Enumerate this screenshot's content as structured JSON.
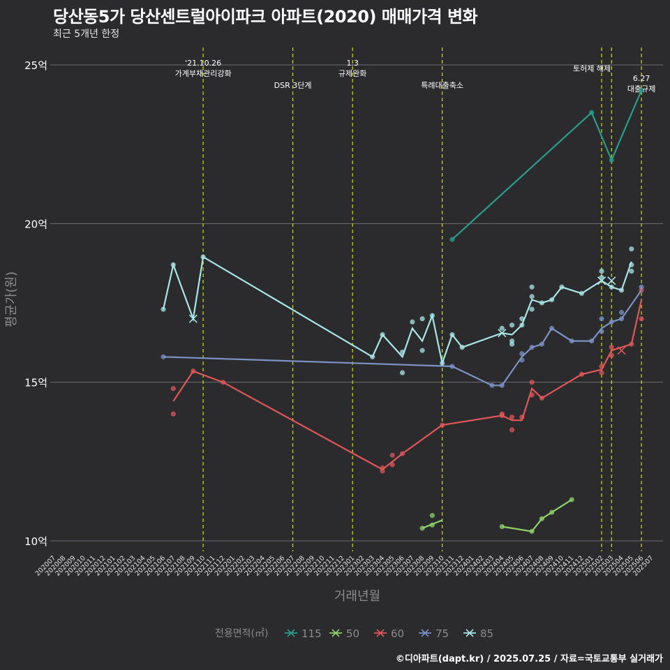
{
  "title": "당산동5가 당산센트럴아이파크 아파트(2020) 매매가격 변화",
  "subtitle": "최근 5개년 한정",
  "caption": "©디아파트(dapt.kr) / 2025.07.25 / 자료=국토교통부 실거래가",
  "chart_data": {
    "type": "line",
    "xlabel": "거래년월",
    "ylabel": "평균가(원)",
    "ylim": [
      9.8,
      25.6
    ],
    "yticks": [
      {
        "value": 10,
        "label": "10억"
      },
      {
        "value": 15,
        "label": "15억"
      },
      {
        "value": 20,
        "label": "20억"
      },
      {
        "value": 25,
        "label": "25억"
      }
    ],
    "x_categories": [
      "202007",
      "202008",
      "202009",
      "202010",
      "202011",
      "202012",
      "202101",
      "202102",
      "202103",
      "202104",
      "202105",
      "202106",
      "202107",
      "202108",
      "202109",
      "202110",
      "202111",
      "202112",
      "202201",
      "202202",
      "202203",
      "202204",
      "202205",
      "202206",
      "202207",
      "202208",
      "202209",
      "202210",
      "202211",
      "202212",
      "202301",
      "202302",
      "202303",
      "202304",
      "202305",
      "202306",
      "202307",
      "202308",
      "202309",
      "202310",
      "202311",
      "202312",
      "202401",
      "202402",
      "202403",
      "202404",
      "202405",
      "202406",
      "202407",
      "202408",
      "202409",
      "202410",
      "202411",
      "202412",
      "202501",
      "202502",
      "202503",
      "202504",
      "202505",
      "202506",
      "202507"
    ],
    "grid": true,
    "legend": {
      "title": "전용면적(㎡)",
      "position": "bottom",
      "items": [
        {
          "label": "115",
          "color": "#2a9d8f"
        },
        {
          "label": "50",
          "color": "#8fd26a"
        },
        {
          "label": "60",
          "color": "#e15759"
        },
        {
          "label": "75",
          "color": "#7b93c6"
        },
        {
          "label": "85",
          "color": "#a8e6e8"
        }
      ]
    },
    "events": [
      {
        "x": "202110",
        "label": "'21.10.26\n가계부채관리강화"
      },
      {
        "x": "202207",
        "label": "DSR 3단계"
      },
      {
        "x": "202301",
        "label": "1.3\n규제완화"
      },
      {
        "x": "202310",
        "label": "특례대출축소"
      },
      {
        "x": "202502",
        "label": "토허제 해제"
      },
      {
        "x": "202503",
        "label": ""
      },
      {
        "x": "202506",
        "label": "6.27\n대출규제"
      }
    ],
    "series": [
      {
        "name": "115",
        "color": "#2a9d8f",
        "line": [
          [
            "202311",
            19.5
          ],
          [
            "202501",
            23.5
          ],
          [
            "202503",
            22.0
          ],
          [
            "202506",
            24.2
          ]
        ],
        "points": [
          [
            "202311",
            19.5
          ],
          [
            "202501",
            23.5
          ],
          [
            "202503",
            22.0
          ],
          [
            "202506",
            24.2
          ]
        ],
        "crosses": []
      },
      {
        "name": "50",
        "color": "#8fd26a",
        "line": [
          [
            "202308",
            10.4
          ],
          [
            "202310",
            10.65
          ]
        ],
        "line2": [
          [
            "202404",
            10.45
          ],
          [
            "202407",
            10.3
          ],
          [
            "202408",
            10.7
          ],
          [
            "202409",
            10.9
          ],
          [
            "202411",
            11.3
          ]
        ],
        "points": [
          [
            "202308",
            10.4
          ],
          [
            "202309",
            10.5
          ],
          [
            "202309",
            10.8
          ],
          [
            "202404",
            10.45
          ],
          [
            "202407",
            10.3
          ],
          [
            "202408",
            10.7
          ],
          [
            "202409",
            10.9
          ],
          [
            "202411",
            11.3
          ]
        ],
        "crosses": []
      },
      {
        "name": "60",
        "color": "#e15759",
        "line": [
          [
            "202107",
            14.4
          ],
          [
            "202109",
            15.35
          ],
          [
            "202112",
            15.0
          ],
          [
            "202304",
            12.25
          ],
          [
            "202306",
            12.75
          ],
          [
            "202310",
            13.65
          ],
          [
            "202404",
            13.95
          ],
          [
            "202405",
            13.8
          ],
          [
            "202406",
            13.8
          ],
          [
            "202407",
            14.8
          ],
          [
            "202408",
            14.5
          ],
          [
            "202412",
            15.25
          ],
          [
            "202502",
            15.4
          ],
          [
            "202503",
            16.0
          ],
          [
            "202505",
            16.2
          ],
          [
            "202506",
            17.6
          ]
        ],
        "points": [
          [
            "202107",
            14.8
          ],
          [
            "202107",
            14.0
          ],
          [
            "202109",
            15.35
          ],
          [
            "202112",
            15.0
          ],
          [
            "202304",
            12.3
          ],
          [
            "202304",
            12.2
          ],
          [
            "202305",
            12.7
          ],
          [
            "202305",
            12.4
          ],
          [
            "202306",
            12.75
          ],
          [
            "202310",
            13.65
          ],
          [
            "202404",
            13.95
          ],
          [
            "202404",
            14.0
          ],
          [
            "202405",
            13.5
          ],
          [
            "202405",
            13.9
          ],
          [
            "202406",
            13.9
          ],
          [
            "202407",
            15.0
          ],
          [
            "202407",
            14.6
          ],
          [
            "202408",
            14.5
          ],
          [
            "202412",
            15.25
          ],
          [
            "202502",
            15.3
          ],
          [
            "202502",
            15.5
          ],
          [
            "202503",
            16.1
          ],
          [
            "202503",
            15.85
          ],
          [
            "202505",
            16.2
          ],
          [
            "202506",
            17.9
          ],
          [
            "202506",
            17.0
          ]
        ],
        "crosses": [
          [
            "202504",
            16.0
          ]
        ]
      },
      {
        "name": "75",
        "color": "#7b93c6",
        "line": [
          [
            "202106",
            15.8
          ],
          [
            "202311",
            15.5
          ],
          [
            "202403",
            14.9
          ],
          [
            "202404",
            14.9
          ],
          [
            "202406",
            15.8
          ],
          [
            "202407",
            16.1
          ],
          [
            "202408",
            16.2
          ],
          [
            "202409",
            16.7
          ],
          [
            "202411",
            16.3
          ],
          [
            "202501",
            16.3
          ],
          [
            "202502",
            16.7
          ],
          [
            "202503",
            16.9
          ],
          [
            "202504",
            17.0
          ],
          [
            "202506",
            17.9
          ]
        ],
        "points": [
          [
            "202106",
            15.8
          ],
          [
            "202311",
            15.5
          ],
          [
            "202403",
            14.9
          ],
          [
            "202404",
            14.9
          ],
          [
            "202406",
            15.9
          ],
          [
            "202406",
            15.7
          ],
          [
            "202407",
            16.1
          ],
          [
            "202408",
            16.2
          ],
          [
            "202409",
            16.7
          ],
          [
            "202411",
            16.3
          ],
          [
            "202501",
            16.3
          ],
          [
            "202502",
            16.6
          ],
          [
            "202502",
            17.0
          ],
          [
            "202503",
            16.9
          ],
          [
            "202504",
            17.0
          ],
          [
            "202504",
            17.2
          ],
          [
            "202506",
            18.0
          ]
        ],
        "crosses": []
      },
      {
        "name": "85",
        "color": "#a8e6e8",
        "line": [
          [
            "202106",
            17.3
          ],
          [
            "202107",
            18.7
          ],
          [
            "202109",
            17.0
          ],
          [
            "202110",
            18.95
          ],
          [
            "202303",
            15.8
          ],
          [
            "202304",
            16.5
          ],
          [
            "202306",
            15.8
          ],
          [
            "202307",
            16.7
          ],
          [
            "202308",
            16.3
          ],
          [
            "202309",
            17.1
          ],
          [
            "202310",
            15.6
          ],
          [
            "202311",
            16.5
          ],
          [
            "202312",
            16.1
          ],
          [
            "202404",
            16.55
          ],
          [
            "202405",
            16.5
          ],
          [
            "202406",
            16.8
          ],
          [
            "202407",
            17.6
          ],
          [
            "202408",
            17.5
          ],
          [
            "202409",
            17.6
          ],
          [
            "202410",
            18.0
          ],
          [
            "202412",
            17.8
          ],
          [
            "202502",
            18.2
          ],
          [
            "202503",
            18.0
          ],
          [
            "202504",
            17.9
          ],
          [
            "202505",
            18.8
          ]
        ],
        "points": [
          [
            "202106",
            17.3
          ],
          [
            "202107",
            18.7
          ],
          [
            "202110",
            18.95
          ],
          [
            "202303",
            15.8
          ],
          [
            "202304",
            16.5
          ],
          [
            "202306",
            15.95
          ],
          [
            "202306",
            15.3
          ],
          [
            "202307",
            16.9
          ],
          [
            "202308",
            17.0
          ],
          [
            "202308",
            16.0
          ],
          [
            "202309",
            17.1
          ],
          [
            "202310",
            15.6
          ],
          [
            "202311",
            16.5
          ],
          [
            "202312",
            16.1
          ],
          [
            "202404",
            16.7
          ],
          [
            "202405",
            16.8
          ],
          [
            "202405",
            16.3
          ],
          [
            "202405",
            16.2
          ],
          [
            "202406",
            17.0
          ],
          [
            "202406",
            16.8
          ],
          [
            "202407",
            18.0
          ],
          [
            "202407",
            17.7
          ],
          [
            "202407",
            17.3
          ],
          [
            "202408",
            17.5
          ],
          [
            "202409",
            17.6
          ],
          [
            "202410",
            18.0
          ],
          [
            "202412",
            17.8
          ],
          [
            "202502",
            18.5
          ],
          [
            "202502",
            18.3
          ],
          [
            "202503",
            18.0
          ],
          [
            "202504",
            17.9
          ],
          [
            "202505",
            19.2
          ],
          [
            "202505",
            18.7
          ],
          [
            "202505",
            18.5
          ]
        ],
        "crosses": [
          [
            "202109",
            17.0
          ],
          [
            "202404",
            16.55
          ],
          [
            "202502",
            18.2
          ],
          [
            "202503",
            18.2
          ]
        ]
      }
    ]
  }
}
